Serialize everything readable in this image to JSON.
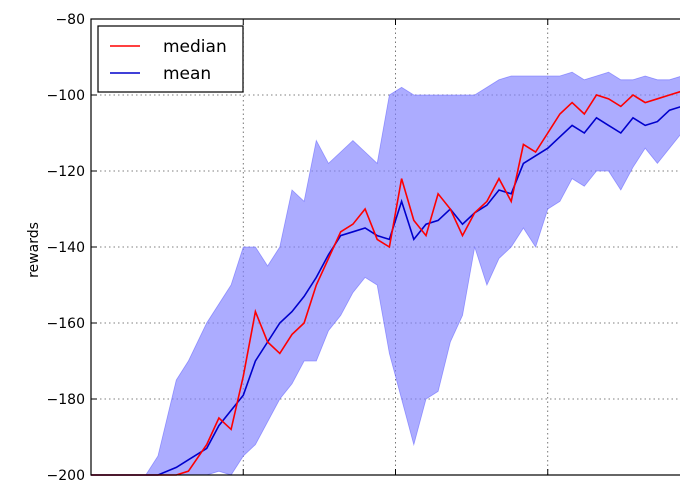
{
  "chart_data": {
    "type": "line",
    "ylabel": "rewards",
    "xlabel": "",
    "title": "",
    "ylim": [
      -200,
      -80
    ],
    "yticks": [
      -80,
      -100,
      -120,
      -140,
      -160,
      -180,
      -200
    ],
    "ytick_labels": [
      "−80",
      "−100",
      "−120",
      "−140",
      "−160",
      "−180",
      "−200"
    ],
    "xlim": [
      0,
      100
    ],
    "xgrid": [
      25,
      50,
      75
    ],
    "grid": true,
    "legend": {
      "placement": "top-left",
      "entries": [
        "median",
        "mean"
      ]
    },
    "colors": {
      "median": "#ff0000",
      "mean": "#0000cc",
      "band": "#8080ff"
    },
    "x": [
      0,
      5,
      9,
      11,
      14,
      16,
      19,
      21,
      23,
      25,
      27,
      29,
      31,
      33,
      35,
      37,
      39,
      41,
      43,
      45,
      47,
      49,
      51,
      53,
      55,
      57,
      59,
      61,
      63,
      65,
      67,
      69,
      71,
      73,
      75,
      77,
      79,
      81,
      83,
      85,
      87,
      89,
      91,
      93,
      95,
      97,
      99,
      100
    ],
    "series": [
      {
        "name": "median",
        "values": [
          -200,
          -200,
          -200,
          -200,
          -200,
          -199,
          -192,
          -185,
          -188,
          -174,
          -157,
          -165,
          -168,
          -163,
          -160,
          -150,
          -143,
          -136,
          -134,
          -130,
          -138,
          -140,
          -122,
          -133,
          -137,
          -126,
          -130,
          -137,
          -131,
          -128,
          -122,
          -128,
          -113,
          -115,
          -110,
          -105,
          -102,
          -105,
          -100,
          -101,
          -103,
          -100,
          -102,
          -101,
          -100,
          -99,
          -98,
          -97
        ]
      },
      {
        "name": "mean",
        "values": [
          -200,
          -200,
          -200,
          -200,
          -198,
          -196,
          -193,
          -187,
          -183,
          -179,
          -170,
          -165,
          -160,
          -157,
          -153,
          -148,
          -142,
          -137,
          -136,
          -135,
          -137,
          -138,
          -128,
          -138,
          -134,
          -133,
          -130,
          -134,
          -131,
          -129,
          -125,
          -126,
          -118,
          -116,
          -114,
          -111,
          -108,
          -110,
          -106,
          -108,
          -110,
          -106,
          -108,
          -107,
          -104,
          -103,
          -101,
          -100
        ]
      },
      {
        "name": "band-upper",
        "values": [
          -200,
          -200,
          -200,
          -195,
          -175,
          -170,
          -160,
          -155,
          -150,
          -140,
          -140,
          -145,
          -140,
          -125,
          -128,
          -112,
          -118,
          -115,
          -112,
          -115,
          -118,
          -100,
          -98,
          -100,
          -100,
          -100,
          -100,
          -100,
          -100,
          -98,
          -96,
          -95,
          -95,
          -95,
          -95,
          -95,
          -94,
          -96,
          -95,
          -94,
          -96,
          -96,
          -95,
          -96,
          -96,
          -95,
          -94,
          -95
        ]
      },
      {
        "name": "band-lower",
        "values": [
          -200,
          -200,
          -200,
          -200,
          -200,
          -200,
          -200,
          -199,
          -200,
          -195,
          -192,
          -186,
          -180,
          -176,
          -170,
          -170,
          -162,
          -158,
          -152,
          -148,
          -150,
          -168,
          -180,
          -192,
          -180,
          -178,
          -165,
          -158,
          -140,
          -150,
          -143,
          -140,
          -135,
          -140,
          -130,
          -128,
          -122,
          -124,
          -120,
          -120,
          -125,
          -119,
          -114,
          -118,
          -114,
          -110,
          -106,
          -103
        ]
      }
    ]
  }
}
